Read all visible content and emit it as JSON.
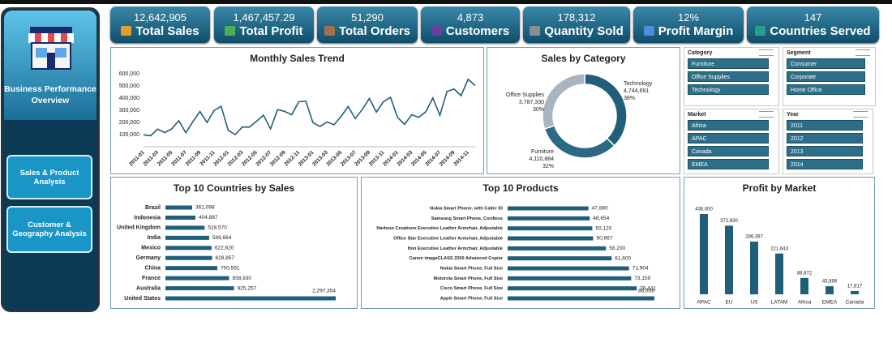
{
  "sidebar": {
    "title": "Business Performance Overview",
    "buttons": [
      "Sales & Product Analysis",
      "Customer & Geography Analysis"
    ]
  },
  "kpis": [
    {
      "value": "12,642,905",
      "label": "Total Sales"
    },
    {
      "value": "1,467,457.29",
      "label": "Total Profit"
    },
    {
      "value": "51,290",
      "label": "Total Orders"
    },
    {
      "value": "4,873",
      "label": "Customers"
    },
    {
      "value": "178,312",
      "label": "Quantity Sold"
    },
    {
      "value": "12%",
      "label": "Profit Margin"
    },
    {
      "value": "147",
      "label": "Countries Served"
    }
  ],
  "slicers": [
    {
      "title": "Category",
      "items": [
        "Furniture",
        "Office Supplies",
        "Technology"
      ]
    },
    {
      "title": "Segment",
      "items": [
        "Consumer",
        "Corporate",
        "Home Office"
      ]
    },
    {
      "title": "Market",
      "items": [
        "Africa",
        "APAC",
        "Canada",
        "EMEA"
      ]
    },
    {
      "title": "Year",
      "items": [
        "2011",
        "2012",
        "2013",
        "2014"
      ]
    }
  ],
  "chart_data": [
    {
      "type": "line",
      "title": "Monthly Sales Trend",
      "color": "#1f5f7a",
      "categories": [
        "2011-01",
        null,
        "2011-03",
        null,
        "2011-05",
        null,
        "2011-07",
        null,
        "2011-09",
        null,
        "2011-11",
        null,
        "2012-01",
        null,
        "2012-03",
        null,
        "2012-05",
        null,
        "2012-07",
        null,
        "2012-09",
        null,
        "2012-11",
        null,
        "2013-01",
        null,
        "2013-03",
        null,
        "2013-05",
        null,
        "2013-07",
        null,
        "2013-09",
        null,
        "2013-11",
        null,
        "2014-01",
        null,
        "2014-03",
        null,
        "2014-05",
        null,
        "2014-07",
        null,
        "2014-09",
        null,
        "2014-11",
        null
      ],
      "values": [
        98000,
        91000,
        145000,
        116000,
        147000,
        215000,
        115000,
        207000,
        290000,
        199000,
        298000,
        333000,
        135000,
        100000,
        163000,
        161000,
        209000,
        259000,
        147000,
        305000,
        291000,
        263000,
        370000,
        375000,
        199000,
        167000,
        203000,
        181000,
        250000,
        331000,
        231000,
        307000,
        397000,
        285000,
        371000,
        406000,
        241000,
        184000,
        263000,
        242000,
        288000,
        401000,
        259000,
        454000,
        475000,
        420000,
        555000,
        503000
      ],
      "ylim": [
        0,
        600000
      ],
      "yticks": [
        {
          "value": 100000,
          "label": "100,000"
        },
        {
          "value": 200000,
          "label": "200,000"
        },
        {
          "value": 300000,
          "label": "300,000"
        },
        {
          "value": 400000,
          "label": "400,000"
        },
        {
          "value": 500000,
          "label": "500,000"
        },
        {
          "value": 600000,
          "label": "600,000"
        }
      ],
      "grid": false
    },
    {
      "type": "pie",
      "title": "Sales by Category",
      "categories": [
        "Technology",
        "Furniture",
        "Office Supplies"
      ],
      "values": [
        4744691,
        4110884,
        3787330
      ],
      "value_labels": [
        "4,744,691",
        "4,110,884",
        "3,787,330"
      ],
      "percents": [
        38,
        32,
        30
      ],
      "percent_labels": [
        "38%",
        "32%",
        "30%"
      ],
      "colors": [
        "#1f5f7a",
        "#2c6a84",
        "#a9b4bf"
      ]
    },
    {
      "type": "barh",
      "title": "Top 10 Countries by Sales",
      "color": "#1f5f7a",
      "categories": [
        "Brazil",
        "Indonesia",
        "United Kingdom",
        "India",
        "Mexico",
        "Germany",
        "China",
        "France",
        "Australia",
        "United States"
      ],
      "values": [
        361098,
        404887,
        528570,
        589664,
        622620,
        628857,
        700591,
        858930,
        925257,
        2297354
      ],
      "value_labels": [
        "361,098",
        "404,887",
        "528,570",
        "589,664",
        "622,620",
        "628,857",
        "700,591",
        "858,930",
        "925,257",
        "2,297,354"
      ]
    },
    {
      "type": "barh",
      "title": "Top 10 Products",
      "color": "#1f5f7a",
      "categories": [
        "Nokia Smart Phone, with Caller ID",
        "Samsung Smart Phone, Cordless",
        "Harbour Creations Executive Leather Armchair, Adjustable",
        "Office Star Executive Leather Armchair, Adjustable",
        "Hon Executive Leather Armchair, Adjustable",
        "Canon imageCLASS 2200 Advanced Copier",
        "Nokia Smart Phone, Full Size",
        "Motorola Smart Phone, Full Size",
        "Cisco Smart Phone, Full Size",
        "Apple Smart Phone, Full Size"
      ],
      "values": [
        47880,
        48654,
        50120,
        50667,
        58200,
        61600,
        71904,
        73159,
        76441,
        86936
      ],
      "value_labels": [
        "47,880",
        "48,654",
        "50,120",
        "50,667",
        "58,200",
        "61,600",
        "71,904",
        "73,159",
        "76,441",
        "86,936"
      ]
    },
    {
      "type": "bar",
      "title": "Profit by Market",
      "color": "#1f5f7a",
      "categories": [
        "APAC",
        "EU",
        "US",
        "LATAM",
        "Africa",
        "EMEA",
        "Canada"
      ],
      "values": [
        436000,
        372830,
        286397,
        221643,
        88872,
        43898,
        17817
      ],
      "value_labels": [
        "436,000",
        "372,830",
        "286,397",
        "221,643",
        "88,872",
        "43,898",
        "17,817"
      ]
    }
  ]
}
